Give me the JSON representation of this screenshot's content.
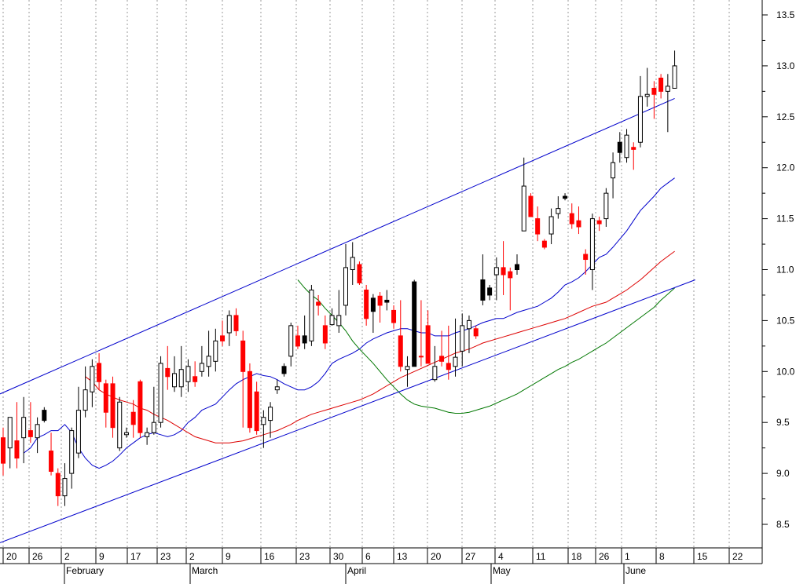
{
  "chart_data": {
    "type": "candlestick",
    "title": "",
    "xlabel": "",
    "ylabel": "",
    "ylim": [
      8.3,
      13.6
    ],
    "grid": "vertical-dotted",
    "y_ticks": [
      "8.5",
      "9.0",
      "9.5",
      "10.0",
      "10.5",
      "11.0",
      "11.5",
      "12.0",
      "12.5",
      "13.0",
      "13.5"
    ],
    "x_ticks": [
      "20",
      "26",
      "2",
      "9",
      "17",
      "23",
      "2",
      "9",
      "16",
      "23",
      "30",
      "6",
      "13",
      "20",
      "27",
      "4",
      "11",
      "18",
      "26",
      "1",
      "8",
      "15",
      "22"
    ],
    "months": [
      "February",
      "March",
      "April",
      "May",
      "June"
    ],
    "colors": {
      "up_candle": "#ffffff",
      "down_candle": "#ff0000",
      "mixed_candle": "#000000",
      "short_ma": "#0000cc",
      "mid_ma": "#dd0000",
      "long_ma": "#007700",
      "channel": "#0000cc",
      "grid": "#999999"
    },
    "candles": [
      {
        "o": 9.1,
        "h": 9.45,
        "l": 8.98,
        "c": 9.35,
        "color": "red"
      },
      {
        "o": 9.25,
        "h": 9.55,
        "l": 9.05,
        "c": 9.55,
        "color": "white"
      },
      {
        "o": 9.15,
        "h": 9.7,
        "l": 9.05,
        "c": 9.32,
        "color": "red"
      },
      {
        "o": 9.35,
        "h": 9.75,
        "l": 9.1,
        "c": 9.55,
        "color": "white"
      },
      {
        "o": 9.42,
        "h": 9.7,
        "l": 9.3,
        "c": 9.36,
        "color": "red"
      },
      {
        "o": 9.35,
        "h": 9.55,
        "l": 9.2,
        "c": 9.48,
        "color": "white"
      },
      {
        "o": 9.62,
        "h": 9.65,
        "l": 9.5,
        "c": 9.52,
        "color": "black"
      },
      {
        "o": 9.22,
        "h": 9.4,
        "l": 8.98,
        "c": 9.02,
        "color": "red"
      },
      {
        "o": 9.0,
        "h": 9.05,
        "l": 8.68,
        "c": 8.78,
        "color": "red"
      },
      {
        "o": 8.78,
        "h": 9.1,
        "l": 8.68,
        "c": 8.95,
        "color": "white"
      },
      {
        "o": 9.0,
        "h": 9.45,
        "l": 8.85,
        "c": 9.42,
        "color": "white"
      },
      {
        "o": 9.2,
        "h": 9.85,
        "l": 9.15,
        "c": 9.62,
        "color": "white"
      },
      {
        "o": 9.62,
        "h": 10.05,
        "l": 9.55,
        "c": 9.82,
        "color": "white"
      },
      {
        "o": 9.8,
        "h": 10.12,
        "l": 9.65,
        "c": 10.05,
        "color": "white"
      },
      {
        "o": 10.08,
        "h": 10.18,
        "l": 9.82,
        "c": 9.9,
        "color": "red"
      },
      {
        "o": 9.88,
        "h": 9.92,
        "l": 9.45,
        "c": 9.6,
        "color": "red"
      },
      {
        "o": 9.88,
        "h": 9.95,
        "l": 9.35,
        "c": 9.45,
        "color": "red"
      },
      {
        "o": 9.7,
        "h": 9.75,
        "l": 9.22,
        "c": 9.25,
        "color": "white"
      },
      {
        "o": 9.4,
        "h": 9.45,
        "l": 9.35,
        "c": 9.38,
        "color": "white"
      },
      {
        "o": 9.6,
        "h": 9.72,
        "l": 9.35,
        "c": 9.48,
        "color": "red"
      },
      {
        "o": 9.4,
        "h": 9.92,
        "l": 9.35,
        "c": 9.9,
        "color": "red"
      },
      {
        "o": 9.4,
        "h": 9.45,
        "l": 9.28,
        "c": 9.36,
        "color": "white"
      },
      {
        "o": 9.4,
        "h": 9.85,
        "l": 9.38,
        "c": 9.5,
        "color": "white"
      },
      {
        "o": 9.5,
        "h": 10.15,
        "l": 9.45,
        "c": 10.08,
        "color": "white"
      },
      {
        "o": 10.03,
        "h": 10.25,
        "l": 9.82,
        "c": 9.95,
        "color": "red"
      },
      {
        "o": 9.85,
        "h": 10.15,
        "l": 9.8,
        "c": 9.98,
        "color": "white"
      },
      {
        "o": 9.85,
        "h": 10.25,
        "l": 9.75,
        "c": 10.02,
        "color": "white"
      },
      {
        "o": 9.9,
        "h": 10.12,
        "l": 9.8,
        "c": 10.05,
        "color": "white"
      },
      {
        "o": 9.95,
        "h": 10.1,
        "l": 9.85,
        "c": 9.9,
        "color": "red"
      },
      {
        "o": 10.0,
        "h": 10.25,
        "l": 9.95,
        "c": 10.08,
        "color": "white"
      },
      {
        "o": 10.05,
        "h": 10.4,
        "l": 9.95,
        "c": 10.15,
        "color": "white"
      },
      {
        "o": 10.1,
        "h": 10.42,
        "l": 10.0,
        "c": 10.3,
        "color": "white"
      },
      {
        "o": 10.35,
        "h": 10.5,
        "l": 10.25,
        "c": 10.3,
        "color": "red"
      },
      {
        "o": 10.38,
        "h": 10.6,
        "l": 10.25,
        "c": 10.55,
        "color": "white"
      },
      {
        "o": 10.55,
        "h": 10.62,
        "l": 10.35,
        "c": 10.4,
        "color": "red"
      },
      {
        "o": 10.3,
        "h": 10.4,
        "l": 9.45,
        "c": 10.0,
        "color": "red"
      },
      {
        "o": 10.0,
        "h": 10.08,
        "l": 9.4,
        "c": 9.45,
        "color": "red"
      },
      {
        "o": 9.8,
        "h": 9.9,
        "l": 9.38,
        "c": 9.42,
        "color": "red"
      },
      {
        "o": 9.55,
        "h": 9.62,
        "l": 9.25,
        "c": 9.48,
        "color": "white"
      },
      {
        "o": 9.52,
        "h": 9.7,
        "l": 9.35,
        "c": 9.65,
        "color": "white"
      },
      {
        "o": 9.85,
        "h": 9.92,
        "l": 9.78,
        "c": 9.82,
        "color": "white"
      },
      {
        "o": 10.05,
        "h": 10.08,
        "l": 9.95,
        "c": 9.98,
        "color": "black"
      },
      {
        "o": 10.15,
        "h": 10.48,
        "l": 10.05,
        "c": 10.45,
        "color": "white"
      },
      {
        "o": 10.35,
        "h": 10.45,
        "l": 10.22,
        "c": 10.25,
        "color": "red"
      },
      {
        "o": 10.35,
        "h": 10.55,
        "l": 10.22,
        "c": 10.28,
        "color": "black"
      },
      {
        "o": 10.3,
        "h": 10.85,
        "l": 10.25,
        "c": 10.8,
        "color": "white"
      },
      {
        "o": 10.65,
        "h": 10.75,
        "l": 10.55,
        "c": 10.68,
        "color": "red"
      },
      {
        "o": 10.45,
        "h": 10.55,
        "l": 10.22,
        "c": 10.28,
        "color": "red"
      },
      {
        "o": 10.55,
        "h": 10.62,
        "l": 10.45,
        "c": 10.46,
        "color": "white"
      },
      {
        "o": 10.45,
        "h": 10.8,
        "l": 10.38,
        "c": 10.55,
        "color": "white"
      },
      {
        "o": 10.65,
        "h": 11.25,
        "l": 10.55,
        "c": 11.02,
        "color": "white"
      },
      {
        "o": 11.0,
        "h": 11.27,
        "l": 10.85,
        "c": 11.12,
        "color": "white"
      },
      {
        "o": 11.05,
        "h": 11.08,
        "l": 10.85,
        "c": 10.87,
        "color": "red"
      },
      {
        "o": 10.8,
        "h": 10.85,
        "l": 10.45,
        "c": 10.52,
        "color": "red"
      },
      {
        "o": 10.72,
        "h": 10.76,
        "l": 10.38,
        "c": 10.59,
        "color": "black"
      },
      {
        "o": 10.74,
        "h": 10.78,
        "l": 10.48,
        "c": 10.65,
        "color": "red"
      },
      {
        "o": 10.7,
        "h": 10.8,
        "l": 10.6,
        "c": 10.68,
        "color": "black"
      },
      {
        "o": 10.6,
        "h": 10.65,
        "l": 10.42,
        "c": 10.48,
        "color": "red"
      },
      {
        "o": 10.35,
        "h": 10.7,
        "l": 10.0,
        "c": 10.05,
        "color": "red"
      },
      {
        "o": 10.05,
        "h": 10.15,
        "l": 9.85,
        "c": 10.02,
        "color": "white"
      },
      {
        "o": 10.88,
        "h": 10.9,
        "l": 10.05,
        "c": 10.05,
        "color": "black"
      },
      {
        "o": 10.15,
        "h": 10.7,
        "l": 10.05,
        "c": 10.15,
        "color": "red"
      },
      {
        "o": 10.45,
        "h": 10.6,
        "l": 10.08,
        "c": 10.08,
        "color": "red"
      },
      {
        "o": 10.05,
        "h": 10.25,
        "l": 9.9,
        "c": 9.92,
        "color": "white"
      },
      {
        "o": 10.15,
        "h": 10.4,
        "l": 10.05,
        "c": 10.1,
        "color": "red"
      },
      {
        "o": 10.08,
        "h": 10.45,
        "l": 9.92,
        "c": 10.02,
        "color": "red"
      },
      {
        "o": 10.05,
        "h": 10.52,
        "l": 9.95,
        "c": 10.14,
        "color": "white"
      },
      {
        "o": 10.2,
        "h": 10.57,
        "l": 10.05,
        "c": 10.45,
        "color": "white"
      },
      {
        "o": 10.42,
        "h": 10.55,
        "l": 10.18,
        "c": 10.5,
        "color": "white"
      },
      {
        "o": 10.42,
        "h": 10.45,
        "l": 10.32,
        "c": 10.35,
        "color": "red"
      },
      {
        "o": 10.7,
        "h": 11.15,
        "l": 10.65,
        "c": 10.9,
        "color": "black"
      },
      {
        "o": 10.75,
        "h": 10.85,
        "l": 10.7,
        "c": 10.82,
        "color": "black"
      },
      {
        "o": 10.95,
        "h": 11.12,
        "l": 10.7,
        "c": 11.02,
        "color": "white"
      },
      {
        "o": 11.02,
        "h": 11.28,
        "l": 10.75,
        "c": 10.95,
        "color": "red"
      },
      {
        "o": 10.98,
        "h": 11.02,
        "l": 10.6,
        "c": 10.92,
        "color": "red"
      },
      {
        "o": 11.05,
        "h": 11.15,
        "l": 10.95,
        "c": 11.0,
        "color": "black"
      },
      {
        "o": 11.38,
        "h": 12.1,
        "l": 11.38,
        "c": 11.82,
        "color": "white"
      },
      {
        "o": 11.72,
        "h": 11.75,
        "l": 11.52,
        "c": 11.52,
        "color": "red"
      },
      {
        "o": 11.5,
        "h": 11.62,
        "l": 11.28,
        "c": 11.35,
        "color": "red"
      },
      {
        "o": 11.28,
        "h": 11.3,
        "l": 11.2,
        "c": 11.22,
        "color": "red"
      },
      {
        "o": 11.35,
        "h": 11.6,
        "l": 11.25,
        "c": 11.52,
        "color": "white"
      },
      {
        "o": 11.55,
        "h": 11.72,
        "l": 11.5,
        "c": 11.6,
        "color": "white"
      },
      {
        "o": 11.7,
        "h": 11.75,
        "l": 11.68,
        "c": 11.72,
        "color": "black"
      },
      {
        "o": 11.55,
        "h": 11.65,
        "l": 11.4,
        "c": 11.45,
        "color": "red"
      },
      {
        "o": 11.48,
        "h": 11.62,
        "l": 11.35,
        "c": 11.42,
        "color": "red"
      },
      {
        "o": 11.15,
        "h": 11.2,
        "l": 10.95,
        "c": 11.1,
        "color": "red"
      },
      {
        "o": 11.0,
        "h": 11.55,
        "l": 10.8,
        "c": 11.5,
        "color": "white"
      },
      {
        "o": 11.45,
        "h": 11.52,
        "l": 11.38,
        "c": 11.48,
        "color": "red"
      },
      {
        "o": 11.5,
        "h": 11.8,
        "l": 11.42,
        "c": 11.75,
        "color": "white"
      },
      {
        "o": 11.9,
        "h": 12.15,
        "l": 11.7,
        "c": 12.05,
        "color": "white"
      },
      {
        "o": 12.15,
        "h": 12.35,
        "l": 12.05,
        "c": 12.25,
        "color": "black"
      },
      {
        "o": 12.1,
        "h": 12.38,
        "l": 12.05,
        "c": 12.32,
        "color": "white"
      },
      {
        "o": 12.2,
        "h": 12.25,
        "l": 11.98,
        "c": 12.18,
        "color": "red"
      },
      {
        "o": 12.25,
        "h": 12.9,
        "l": 12.2,
        "c": 12.7,
        "color": "white"
      },
      {
        "o": 12.7,
        "h": 12.98,
        "l": 12.6,
        "c": 12.72,
        "color": "white"
      },
      {
        "o": 12.72,
        "h": 12.85,
        "l": 12.48,
        "c": 12.78,
        "color": "red"
      },
      {
        "o": 12.88,
        "h": 12.92,
        "l": 12.68,
        "c": 12.75,
        "color": "red"
      },
      {
        "o": 12.75,
        "h": 12.92,
        "l": 12.35,
        "c": 12.8,
        "color": "white"
      },
      {
        "o": 12.78,
        "h": 13.15,
        "l": 12.78,
        "c": 13.0,
        "color": "white"
      }
    ],
    "series": [
      {
        "key": "short_ma",
        "values": [
          9.2,
          9.25,
          9.35,
          9.38,
          9.42,
          9.42,
          9.48,
          9.4,
          9.25,
          9.15,
          9.08,
          9.05,
          9.08,
          9.12,
          9.18,
          9.25,
          9.3,
          9.35,
          9.38,
          9.4,
          9.38,
          9.36,
          9.38,
          9.42,
          9.5,
          9.55,
          9.62,
          9.65,
          9.68,
          9.75,
          9.82,
          9.88,
          9.92,
          9.95,
          9.98,
          9.96,
          9.95,
          9.92,
          9.88,
          9.85,
          9.82,
          9.82,
          9.85,
          9.9,
          9.98,
          10.08,
          10.12,
          10.15,
          10.18,
          10.22,
          10.28,
          10.32,
          10.35,
          10.38,
          10.4,
          10.42,
          10.42,
          10.4,
          10.38,
          10.38,
          10.35,
          10.35,
          10.35,
          10.38,
          10.4,
          10.42,
          10.45,
          10.48,
          10.5,
          10.52,
          10.52,
          10.55,
          10.58,
          10.6,
          10.62,
          10.64,
          10.68,
          10.72,
          10.78,
          10.85,
          10.88,
          10.92,
          10.98,
          11.05,
          11.12,
          11.15,
          11.22,
          11.3,
          11.38,
          11.48,
          11.58,
          11.65,
          11.72,
          11.8,
          11.85,
          11.9
        ]
      },
      {
        "key": "mid_ma",
        "values": [
          9.95,
          9.9,
          9.82,
          9.78,
          9.75,
          9.72,
          9.7,
          9.68,
          9.64,
          9.62,
          9.58,
          9.55,
          9.52,
          9.48,
          9.44,
          9.4,
          9.36,
          9.34,
          9.32,
          9.3,
          9.3,
          9.3,
          9.31,
          9.32,
          9.34,
          9.36,
          9.38,
          9.4,
          9.42,
          9.45,
          9.48,
          9.52,
          9.55,
          9.58,
          9.6,
          9.62,
          9.64,
          9.66,
          9.68,
          9.7,
          9.72,
          9.75,
          9.78,
          9.82,
          9.86,
          9.9,
          9.94,
          9.97,
          10.0,
          10.03,
          10.06,
          10.09,
          10.12,
          10.15,
          10.18,
          10.2,
          10.22,
          10.25,
          10.28,
          10.3,
          10.32,
          10.34,
          10.36,
          10.38,
          10.4,
          10.42,
          10.44,
          10.46,
          10.48,
          10.5,
          10.52,
          10.55,
          10.58,
          10.61,
          10.64,
          10.66,
          10.68,
          10.72,
          10.76,
          10.8,
          10.85,
          10.9,
          10.96,
          11.02,
          11.08,
          11.13,
          11.18
        ]
      },
      {
        "key": "long_ma",
        "values": [
          10.9,
          10.82,
          10.75,
          10.7,
          10.62,
          10.55,
          10.48,
          10.4,
          10.3,
          10.22,
          10.15,
          10.08,
          10.0,
          9.92,
          9.85,
          9.78,
          9.72,
          9.68,
          9.66,
          9.65,
          9.64,
          9.62,
          9.6,
          9.59,
          9.59,
          9.6,
          9.62,
          9.64,
          9.66,
          9.69,
          9.72,
          9.75,
          9.78,
          9.82,
          9.86,
          9.9,
          9.94,
          9.98,
          10.02,
          10.05,
          10.09,
          10.12,
          10.16,
          10.2,
          10.24,
          10.28,
          10.33,
          10.38,
          10.43,
          10.48,
          10.53,
          10.58,
          10.63,
          10.7,
          10.76,
          10.82
        ]
      }
    ],
    "channel": {
      "upper": {
        "x1": 0,
        "y1": 9.78,
        "x2": 98,
        "y2": 12.68
      },
      "lower": {
        "x1": 0,
        "y1": 8.32,
        "x2": 101,
        "y2": 10.9
      }
    }
  }
}
